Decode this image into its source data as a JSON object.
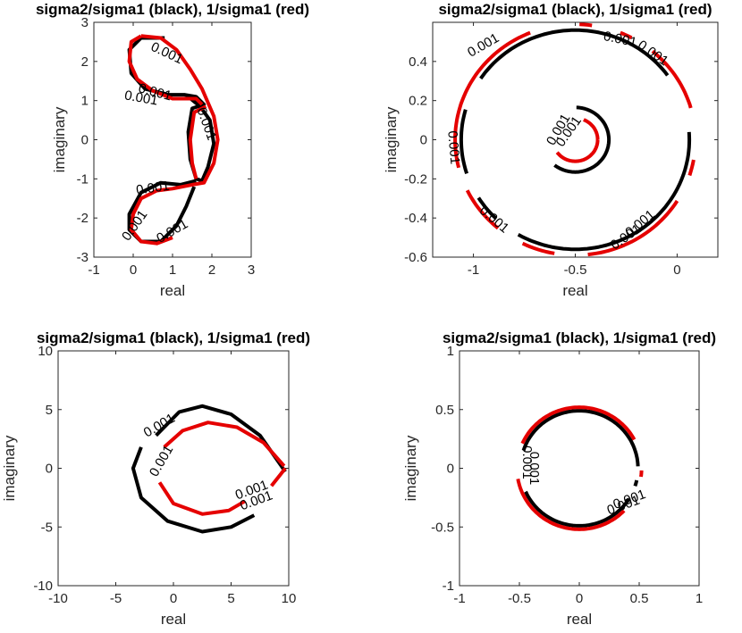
{
  "chart_data": [
    {
      "type": "line",
      "title": "sigma2/sigma1 (black), 1/sigma1 (red)",
      "xlabel": "real",
      "ylabel": "imaginary",
      "xlim": [
        -1,
        3
      ],
      "ylim": [
        -3,
        3
      ],
      "xticks": [
        "-1",
        "0",
        "1",
        "2",
        "3"
      ],
      "yticks": [
        "-3",
        "-2",
        "-1",
        "0",
        "1",
        "2",
        "3"
      ],
      "contour_level_label": "0.001",
      "colors": {
        "black": "#000000",
        "red": "#e50000"
      },
      "series": [
        {
          "name": "sigma2/sigma1",
          "color": "black",
          "segments": [
            [
              [
                0.8,
                2.6
              ],
              [
                0.2,
                2.6
              ],
              [
                -0.1,
                2.3
              ],
              [
                -0.05,
                1.7
              ],
              [
                0.3,
                1.3
              ],
              [
                0.9,
                1.15
              ],
              [
                1.3,
                1.15
              ],
              [
                1.6,
                1.1
              ],
              [
                1.8,
                0.9
              ],
              [
                1.5,
                0.8
              ],
              [
                1.4,
                0.2
              ],
              [
                1.45,
                -0.5
              ],
              [
                1.6,
                -1.0
              ],
              [
                1.75,
                -1.05
              ],
              [
                1.9,
                -0.7
              ],
              [
                2.05,
                -0.1
              ],
              [
                1.95,
                0.5
              ],
              [
                1.7,
                0.85
              ],
              [
                1.4,
                1.1
              ]
            ],
            [
              [
                1.6,
                -1.05
              ],
              [
                1.2,
                -1.15
              ],
              [
                0.7,
                -1.1
              ],
              [
                0.2,
                -1.35
              ],
              [
                -0.1,
                -1.9
              ],
              [
                -0.1,
                -2.3
              ],
              [
                0.2,
                -2.6
              ],
              [
                0.7,
                -2.6
              ],
              [
                1.1,
                -2.2
              ],
              [
                1.35,
                -1.7
              ],
              [
                1.55,
                -1.2
              ]
            ]
          ]
        },
        {
          "name": "1/sigma1",
          "color": "red",
          "segments": [
            [
              [
                0.2,
                2.65
              ],
              [
                0.7,
                2.6
              ],
              [
                1.1,
                2.3
              ],
              [
                1.45,
                1.8
              ],
              [
                1.75,
                1.3
              ],
              [
                2.05,
                0.6
              ],
              [
                2.15,
                0.0
              ],
              [
                2.05,
                -0.6
              ],
              [
                1.8,
                -1.1
              ],
              [
                1.5,
                -1.15
              ],
              [
                1.0,
                -1.25
              ],
              [
                0.6,
                -1.3
              ],
              [
                0.2,
                -1.5
              ],
              [
                0.0,
                -1.9
              ],
              [
                -0.05,
                -2.3
              ],
              [
                0.2,
                -2.6
              ],
              [
                0.6,
                -2.65
              ],
              [
                1.0,
                -2.5
              ]
            ],
            [
              [
                0.2,
                2.65
              ],
              [
                -0.05,
                2.5
              ],
              [
                -0.1,
                2.0
              ],
              [
                0.1,
                1.55
              ],
              [
                0.5,
                1.25
              ],
              [
                1.0,
                1.05
              ],
              [
                1.3,
                1.05
              ],
              [
                1.6,
                1.05
              ],
              [
                1.75,
                0.9
              ]
            ],
            [
              [
                1.85,
                0.85
              ],
              [
                1.55,
                0.7
              ],
              [
                1.45,
                0.0
              ],
              [
                1.5,
                -0.6
              ],
              [
                1.6,
                -1.0
              ]
            ]
          ]
        }
      ]
    },
    {
      "type": "line",
      "title": "sigma2/sigma1 (black), 1/sigma1 (red)",
      "xlabel": "real",
      "ylabel": "imaginary",
      "xlim": [
        -1.2,
        0.2
      ],
      "ylim": [
        -0.6,
        0.6
      ],
      "xticks": [
        "-1",
        "-0.5",
        "0"
      ],
      "yticks": [
        "-0.6",
        "-0.4",
        "-0.2",
        "0",
        "0.2",
        "0.4"
      ],
      "contour_level_label": "0.001",
      "series": [
        {
          "name": "sigma2/sigma1",
          "color": "black",
          "circles": [
            {
              "center": [
                -0.5,
                0.0
              ],
              "radius": 0.56,
              "gaps_deg": [
                [
                  5,
                  35
                ],
                [
                  148,
                  162
                ],
                [
                  200,
                  210
                ],
                [
                  228,
                  238
                ]
              ]
            },
            {
              "center": [
                -0.5,
                0.0
              ],
              "radius": 0.165,
              "gaps_deg": [
                [
                  90,
                  230
                ]
              ]
            }
          ]
        },
        {
          "name": "1/sigma1",
          "color": "red",
          "circles": [
            {
              "center": [
                -0.5,
                0.0
              ],
              "radius": 0.59,
              "gaps_deg": [
                [
                  -10,
                  15
                ],
                [
                  52,
                  60
                ],
                [
                  70,
                  80
                ],
                [
                  90,
                  110
                ],
                [
                  195,
                  205
                ],
                [
                  232,
                  242
                ],
                [
                  262,
                  275
                ],
                [
                  330,
                  340
                ]
              ]
            },
            {
              "center": [
                -0.5,
                0.0
              ],
              "radius": 0.11,
              "gaps_deg": [
                [
                  70,
                  215
                ]
              ]
            }
          ]
        }
      ]
    },
    {
      "type": "line",
      "title": "sigma2/sigma1 (black), 1/sigma1 (red)",
      "xlabel": "real",
      "ylabel": "imaginary",
      "xlim": [
        -10,
        10
      ],
      "ylim": [
        -10,
        10
      ],
      "xticks": [
        "-10",
        "-5",
        "0",
        "5",
        "10"
      ],
      "yticks": [
        "-10",
        "-5",
        "0",
        "5",
        "10"
      ],
      "contour_level_label": "0.001",
      "series": [
        {
          "name": "sigma2/sigma1",
          "color": "black",
          "segments": [
            [
              [
                -1.5,
                2.8
              ],
              [
                0.5,
                4.8
              ],
              [
                2.5,
                5.3
              ],
              [
                5.0,
                4.6
              ],
              [
                7.5,
                2.8
              ],
              [
                9.5,
                0.0
              ],
              [
                9.7,
                -0.3
              ]
            ],
            [
              [
                -2.8,
                1.8
              ],
              [
                -3.5,
                0.0
              ],
              [
                -2.8,
                -2.5
              ],
              [
                -0.5,
                -4.5
              ],
              [
                2.5,
                -5.4
              ],
              [
                5.0,
                -5.0
              ],
              [
                7.0,
                -4.0
              ]
            ]
          ]
        },
        {
          "name": "1/sigma1",
          "color": "red",
          "segments": [
            [
              [
                -0.8,
                1.8
              ],
              [
                0.8,
                3.2
              ],
              [
                3.0,
                3.9
              ],
              [
                5.5,
                3.5
              ],
              [
                7.8,
                2.2
              ],
              [
                9.6,
                0.2
              ]
            ],
            [
              [
                -1.2,
                -1.2
              ],
              [
                0.0,
                -3.0
              ],
              [
                2.5,
                -3.9
              ],
              [
                4.8,
                -3.6
              ],
              [
                6.2,
                -2.8
              ]
            ],
            [
              [
                8.5,
                -1.5
              ],
              [
                9.3,
                -0.5
              ],
              [
                9.7,
                0.0
              ]
            ]
          ]
        }
      ]
    },
    {
      "type": "line",
      "title": "sigma2/sigma1 (black), 1/sigma1 (red)",
      "xlabel": "real",
      "ylabel": "imaginary",
      "xlim": [
        -1,
        1
      ],
      "ylim": [
        -1,
        1
      ],
      "xticks": [
        "-1",
        "-0.5",
        "0",
        "0.5",
        "1"
      ],
      "yticks": [
        "-1",
        "-0.5",
        "0",
        "0.5",
        "1"
      ],
      "contour_level_label": "0.001",
      "series": [
        {
          "name": "sigma2/sigma1",
          "color": "black",
          "circles": [
            {
              "center": [
                0.0,
                0.0
              ],
              "radius": 0.49,
              "gaps_deg": [
                [
                  -12,
                  0
                ],
                [
                  164,
                  186
                ],
                [
                  190,
                  202
                ],
                [
                  330,
                  340
                ]
              ]
            }
          ]
        },
        {
          "name": "1/sigma1",
          "color": "red",
          "circles": [
            {
              "center": [
                0.0,
                0.0
              ],
              "radius": 0.52,
              "gaps_deg": [
                [
                  -2,
                  26
                ],
                [
                  158,
                  188
                ],
                [
                  318,
                  350
                ]
              ]
            }
          ]
        }
      ]
    }
  ]
}
